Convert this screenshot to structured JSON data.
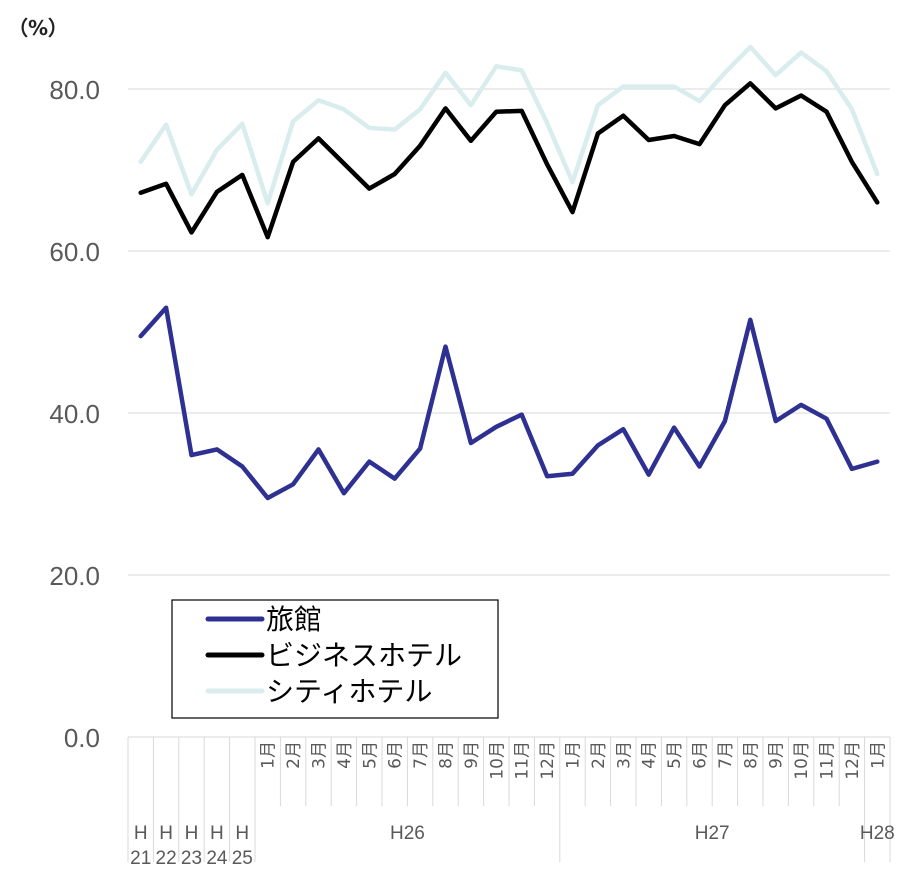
{
  "chart_data": {
    "type": "line",
    "y_unit": "（%）",
    "ylim": [
      0,
      80
    ],
    "yticks": [
      "0.0",
      "20.0",
      "40.0",
      "60.0",
      "80.0"
    ],
    "yticks_values": [
      0,
      20,
      40,
      60,
      80
    ],
    "grid": true,
    "legend_placement": "lower-left",
    "categories": [
      "H21",
      "H22",
      "H23",
      "H24",
      "H25",
      "1月",
      "2月",
      "3月",
      "4月",
      "5月",
      "6月",
      "7月",
      "8月",
      "9月",
      "10月",
      "11月",
      "12月",
      "1月",
      "2月",
      "3月",
      "4月",
      "5月",
      "6月",
      "7月",
      "8月",
      "9月",
      "10月",
      "11月",
      "12月",
      "1月"
    ],
    "year_groups": [
      {
        "label_top": "H",
        "label_bottom": "21"
      },
      {
        "label_top": "H",
        "label_bottom": "22"
      },
      {
        "label_top": "H",
        "label_bottom": "23"
      },
      {
        "label_top": "H",
        "label_bottom": "24"
      },
      {
        "label_top": "H",
        "label_bottom": "25"
      },
      {
        "label_top": "H26",
        "label_bottom": ""
      },
      {
        "label_top": "H27",
        "label_bottom": ""
      },
      {
        "label_top": "H28",
        "label_bottom": ""
      }
    ],
    "series": [
      {
        "name": "旅館",
        "color": "#2e3192",
        "values": [
          49.5,
          53.0,
          34.8,
          35.5,
          33.4,
          29.5,
          31.2,
          35.5,
          30.1,
          34.0,
          31.9,
          35.6,
          48.2,
          36.3,
          38.3,
          39.8,
          32.2,
          32.5,
          36.0,
          38.0,
          32.4,
          38.2,
          33.4,
          39.0,
          51.5,
          39.0,
          41.0,
          39.3,
          33.1,
          34.0
        ]
      },
      {
        "name": "ビジネスホテル",
        "color": "#000000",
        "values": [
          67.2,
          68.3,
          62.3,
          67.3,
          69.4,
          61.7,
          71.0,
          73.9,
          70.8,
          67.7,
          69.5,
          73.0,
          77.6,
          73.6,
          77.2,
          77.3,
          70.7,
          64.8,
          74.5,
          76.7,
          73.7,
          74.2,
          73.2,
          78.0,
          80.7,
          77.6,
          79.2,
          77.2,
          71.0,
          66.0
        ]
      },
      {
        "name": "シティホテル",
        "color": "#d9ecee",
        "values": [
          71.0,
          75.6,
          67.0,
          72.5,
          75.7,
          65.9,
          76.0,
          78.6,
          77.5,
          75.2,
          75.0,
          77.5,
          82.0,
          78.0,
          82.8,
          82.3,
          75.8,
          68.5,
          78.0,
          80.3,
          80.3,
          80.3,
          78.5,
          82.0,
          85.2,
          81.7,
          84.5,
          82.2,
          77.5,
          69.5
        ]
      }
    ]
  }
}
